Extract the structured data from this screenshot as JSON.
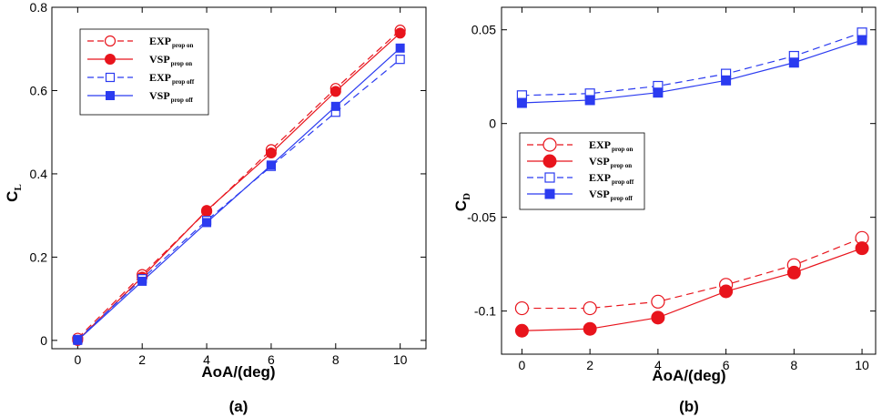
{
  "colors": {
    "red": "#e8141c",
    "blue": "#2b3bf0"
  },
  "x_values": [
    0,
    2,
    4,
    6,
    8,
    10
  ],
  "chart_data": [
    {
      "type": "line",
      "id": "cl",
      "caption": "(a)",
      "xlabel": "AoA/(deg)",
      "ylabel_main": "C",
      "ylabel_sub": "L",
      "xlim": [
        -0.8,
        10.8
      ],
      "ylim": [
        -0.02,
        0.8
      ],
      "xticks": [
        "0",
        "2",
        "4",
        "6",
        "8",
        "10"
      ],
      "yticks": [
        {
          "v": 0,
          "label": "0"
        },
        {
          "v": 0.2,
          "label": "0.2"
        },
        {
          "v": 0.4,
          "label": "0.4"
        },
        {
          "v": 0.6,
          "label": "0.6"
        },
        {
          "v": 0.8,
          "label": "0.8"
        }
      ],
      "legend_position": "top-left",
      "series": [
        {
          "name": "EXP",
          "sub": "prop on",
          "color": "red",
          "dash": true,
          "marker": "circle-open",
          "values": [
            0.005,
            0.158,
            0.31,
            0.458,
            0.605,
            0.745
          ]
        },
        {
          "name": "VSP",
          "sub": "prop on",
          "color": "red",
          "dash": false,
          "marker": "circle-filled",
          "values": [
            0.0,
            0.152,
            0.312,
            0.45,
            0.598,
            0.738
          ]
        },
        {
          "name": "EXP",
          "sub": "prop off",
          "color": "blue",
          "dash": true,
          "marker": "square-open",
          "values": [
            0.002,
            0.148,
            0.288,
            0.418,
            0.548,
            0.675
          ]
        },
        {
          "name": "VSP",
          "sub": "prop off",
          "color": "blue",
          "dash": false,
          "marker": "square-filled",
          "values": [
            0.0,
            0.142,
            0.283,
            0.421,
            0.562,
            0.702
          ]
        }
      ]
    },
    {
      "type": "line",
      "id": "cd",
      "caption": "(b)",
      "xlabel": "AoA/(deg)",
      "ylabel_main": "C",
      "ylabel_sub": "D",
      "xlim": [
        -0.6,
        10.4
      ],
      "ylim": [
        -0.123,
        0.062
      ],
      "xticks": [
        "0",
        "2",
        "4",
        "6",
        "8",
        "10"
      ],
      "yticks": [
        {
          "v": -0.1,
          "label": "-0.1"
        },
        {
          "v": -0.05,
          "label": "-0.05"
        },
        {
          "v": 0,
          "label": "0"
        },
        {
          "v": 0.05,
          "label": "0.05"
        }
      ],
      "legend_position": "center-left",
      "series": [
        {
          "name": "EXP",
          "sub": "prop on",
          "color": "red",
          "dash": true,
          "marker": "circle-open",
          "values": [
            -0.0985,
            -0.0985,
            -0.095,
            -0.086,
            -0.0755,
            -0.061
          ]
        },
        {
          "name": "VSP",
          "sub": "prop on",
          "color": "red",
          "dash": false,
          "marker": "circle-filled",
          "values": [
            -0.1105,
            -0.1095,
            -0.1035,
            -0.0895,
            -0.0795,
            -0.0665
          ]
        },
        {
          "name": "EXP",
          "sub": "prop off",
          "color": "blue",
          "dash": true,
          "marker": "square-open",
          "values": [
            0.015,
            0.016,
            0.02,
            0.0265,
            0.036,
            0.0485
          ]
        },
        {
          "name": "VSP",
          "sub": "prop off",
          "color": "blue",
          "dash": false,
          "marker": "square-filled",
          "values": [
            0.011,
            0.0125,
            0.0165,
            0.023,
            0.0325,
            0.0445
          ]
        }
      ]
    }
  ]
}
